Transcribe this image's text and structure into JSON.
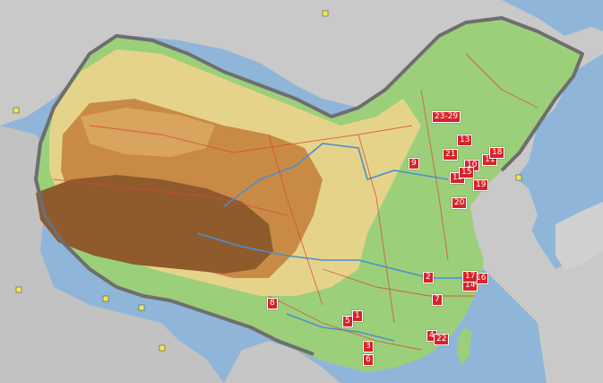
{
  "colors": {
    "sea": "#8fb6d8",
    "foreign_land": "#c9c9c9",
    "lowland": "#9ccf7a",
    "midland": "#e6d38a",
    "highland": "#c98a45",
    "plateau": "#8f5a2c",
    "border": "#6e6e6e",
    "rivers": "#4a8fd1",
    "province_lines": "#d8463a",
    "marker": "#d8232a"
  },
  "markers": [
    {
      "label": "1"
    },
    {
      "label": "2"
    },
    {
      "label": "3"
    },
    {
      "label": "4"
    },
    {
      "label": "5"
    },
    {
      "label": "6"
    },
    {
      "label": "7"
    },
    {
      "label": "8"
    },
    {
      "label": "9"
    },
    {
      "label": "10"
    },
    {
      "label": "11"
    },
    {
      "label": "12"
    },
    {
      "label": "13"
    },
    {
      "label": "14"
    },
    {
      "label": "15"
    },
    {
      "label": "16"
    },
    {
      "label": "17"
    },
    {
      "label": "18"
    },
    {
      "label": "19"
    },
    {
      "label": "20"
    },
    {
      "label": "21"
    },
    {
      "label": "22"
    },
    {
      "label": "23-29"
    }
  ]
}
